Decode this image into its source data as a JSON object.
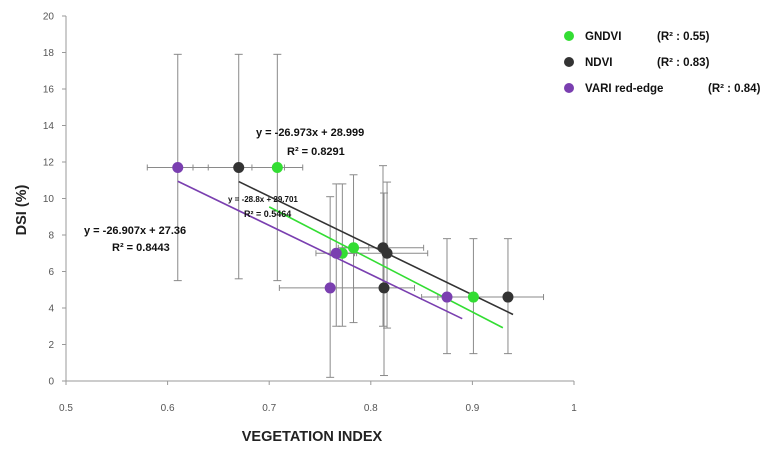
{
  "chart_data": {
    "type": "scatter",
    "xlabel": "VEGETATION INDEX",
    "ylabel": "DSI (%)",
    "xlim": [
      0.5,
      1
    ],
    "ylim": [
      0,
      20
    ],
    "x_ticks": [
      "0.5",
      "0.6",
      "0.7",
      "0.8",
      "0.9",
      "1"
    ],
    "y_ticks": [
      "0",
      "2",
      "4",
      "6",
      "8",
      "10",
      "12",
      "14",
      "16",
      "18",
      "20"
    ],
    "grid": false,
    "legend_position": "top-right",
    "series": [
      {
        "name": "GNDVI",
        "r2_label": "(R² : 0.55)",
        "color": "#33dd33",
        "points": [
          {
            "x": 0.708,
            "y": 11.7,
            "xerr": 0.025,
            "y_low": 5.5,
            "y_high": 17.9
          },
          {
            "x": 0.772,
            "y": 7.0,
            "xerr": 0.012,
            "y_low": 3.0,
            "y_high": 10.8
          },
          {
            "x": 0.783,
            "y": 7.3,
            "xerr": 0.015,
            "y_low": 3.2,
            "y_high": 11.3
          },
          {
            "x": 0.901,
            "y": 4.6,
            "xerr": 0.035,
            "y_low": 1.5,
            "y_high": 7.8
          }
        ],
        "trendline": {
          "slope": -28.8,
          "intercept": 29.701,
          "x_range": [
            0.7,
            0.93
          ]
        }
      },
      {
        "name": "NDVI",
        "r2_label": "(R² : 0.83)",
        "color": "#333333",
        "points": [
          {
            "x": 0.67,
            "y": 11.7,
            "xerr": 0.045,
            "y_low": 5.6,
            "y_high": 17.9
          },
          {
            "x": 0.812,
            "y": 7.3,
            "xerr": 0.04,
            "y_low": 3.0,
            "y_high": 11.8
          },
          {
            "x": 0.816,
            "y": 7.0,
            "xerr": 0.04,
            "y_low": 2.9,
            "y_high": 10.9
          },
          {
            "x": 0.813,
            "y": 5.1,
            "xerr": 0.03,
            "y_low": 0.3,
            "y_high": 10.3
          },
          {
            "x": 0.935,
            "y": 4.6,
            "xerr": 0.035,
            "y_low": 1.5,
            "y_high": 7.8
          }
        ],
        "trendline": {
          "slope": -26.973,
          "intercept": 28.999,
          "x_range": [
            0.67,
            0.94
          ]
        }
      },
      {
        "name": "VARI red-edge",
        "r2_label": "(R² : 0.84)",
        "color": "#7a3fb0",
        "points": [
          {
            "x": 0.61,
            "y": 11.7,
            "xerr": 0.03,
            "y_low": 5.5,
            "y_high": 17.9
          },
          {
            "x": 0.766,
            "y": 7.0,
            "xerr": 0.02,
            "y_low": 3.0,
            "y_high": 10.8
          },
          {
            "x": 0.76,
            "y": 5.1,
            "xerr": 0.05,
            "y_low": 0.2,
            "y_high": 10.1
          },
          {
            "x": 0.875,
            "y": 4.6,
            "xerr": 0.025,
            "y_low": 1.5,
            "y_high": 7.8
          }
        ],
        "trendline": {
          "slope": -26.907,
          "intercept": 27.36,
          "x_range": [
            0.61,
            0.89
          ]
        }
      }
    ],
    "annotations": [
      {
        "line1": "y = -26.973x + 28.999",
        "line2": "R² = 0.8291",
        "series": "NDVI"
      },
      {
        "line1": "y = -28.8x + 29.701",
        "line2": "R² = 0.5464",
        "series": "GNDVI"
      },
      {
        "line1": "y = -26.907x + 27.36",
        "line2": "R² = 0.8443",
        "series": "VARI red-edge"
      }
    ]
  }
}
